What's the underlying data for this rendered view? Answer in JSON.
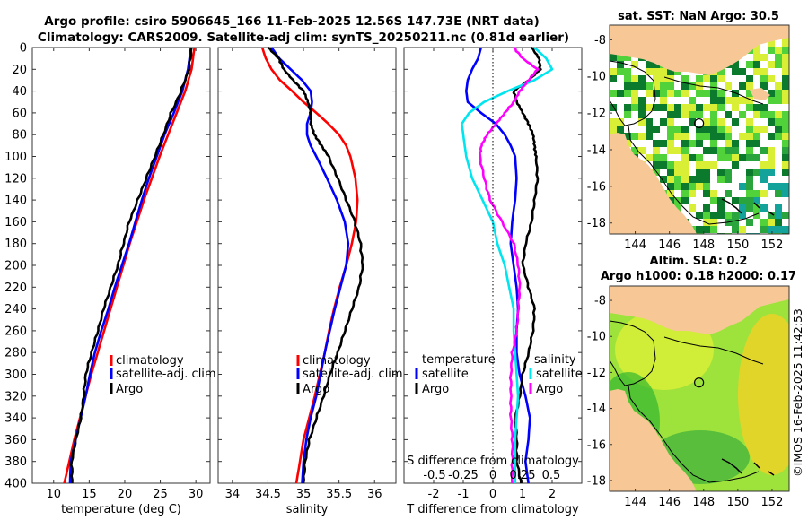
{
  "header": {
    "title_line1": "Argo profile: csiro 5906645_166 11-Feb-2025 12.56S 147.73E (NRT data)",
    "title_line2": "Climatology: CARS2009. Satellite-adj clim: synTS_20250211.nc (0.81d earlier)"
  },
  "colors": {
    "climatology": "#ff0000",
    "satellite": "#0000ff",
    "argo": "#000000",
    "temp_diff": "#00e5ee",
    "sal_diff": "#ff00ff",
    "land": "#f7c896",
    "sst_dark": "#0c7a2c",
    "sst_mid": "#52d23a",
    "sst_light": "#d8ef36"
  },
  "y_axis": {
    "label": "",
    "ticks": [
      0,
      20,
      40,
      60,
      80,
      100,
      120,
      140,
      160,
      180,
      200,
      220,
      240,
      260,
      280,
      300,
      320,
      340,
      360,
      380,
      400
    ]
  },
  "chart_data": [
    {
      "type": "line",
      "name": "temperature-profile",
      "xlabel": "temperature (deg C)",
      "ylabel": "",
      "xlim": [
        7,
        32
      ],
      "ylim": [
        400,
        0
      ],
      "xticks": [
        10,
        15,
        20,
        25,
        30
      ],
      "depth": [
        0,
        20,
        40,
        60,
        80,
        100,
        120,
        140,
        160,
        180,
        200,
        220,
        240,
        260,
        280,
        300,
        320,
        340,
        360,
        380,
        400
      ],
      "series": [
        {
          "name": "climatology",
          "color": "#ff0000",
          "values": [
            29.8,
            29.4,
            28.5,
            27.3,
            26.1,
            24.9,
            23.8,
            22.7,
            21.7,
            20.7,
            19.8,
            18.9,
            18.0,
            17.1,
            16.2,
            15.3,
            14.5,
            13.7,
            12.9,
            12.2,
            11.5
          ]
        },
        {
          "name": "satellite-adj. clim",
          "color": "#0000ff",
          "values": [
            29.3,
            28.9,
            28.1,
            26.9,
            25.6,
            24.5,
            23.4,
            22.4,
            21.5,
            20.6,
            19.6,
            18.6,
            17.7,
            16.7,
            15.8,
            15.1,
            14.5,
            13.8,
            13.1,
            12.4,
            12.3
          ]
        },
        {
          "name": "Argo",
          "color": "#000000",
          "values": [
            29.4,
            29.0,
            27.9,
            26.5,
            25.4,
            24.2,
            23.0,
            21.8,
            20.6,
            19.8,
            19.0,
            18.0,
            17.0,
            16.2,
            15.3,
            14.5,
            14.2,
            13.8,
            13.1,
            12.5,
            12.6
          ]
        }
      ],
      "legend": [
        "climatology",
        "satellite-adj. clim",
        "Argo"
      ],
      "legend_position": "lower-right"
    },
    {
      "type": "line",
      "name": "salinity-profile",
      "xlabel": "salinity",
      "ylabel": "",
      "xlim": [
        33.8,
        36.3
      ],
      "ylim": [
        400,
        0
      ],
      "xticks": [
        34,
        34.5,
        35,
        35.5,
        36
      ],
      "xtick_labels": [
        "34",
        "34.5",
        "35",
        "35.5",
        "36"
      ],
      "depth": [
        0,
        10,
        20,
        30,
        40,
        50,
        60,
        70,
        80,
        90,
        100,
        120,
        140,
        160,
        180,
        200,
        220,
        240,
        260,
        280,
        300,
        320,
        340,
        360,
        380,
        400
      ],
      "series": [
        {
          "name": "climatology",
          "color": "#ff0000",
          "values": [
            34.42,
            34.47,
            34.55,
            34.67,
            34.84,
            35.0,
            35.18,
            35.35,
            35.5,
            35.6,
            35.66,
            35.73,
            35.76,
            35.74,
            35.68,
            35.6,
            35.51,
            35.43,
            35.36,
            35.3,
            35.23,
            35.16,
            35.08,
            35.0,
            34.95,
            34.9
          ]
        },
        {
          "name": "satellite-adj. clim",
          "color": "#0000ff",
          "values": [
            34.55,
            34.66,
            34.82,
            34.98,
            35.1,
            35.12,
            35.1,
            35.05,
            35.05,
            35.1,
            35.18,
            35.33,
            35.47,
            35.58,
            35.63,
            35.6,
            35.52,
            35.44,
            35.37,
            35.3,
            35.24,
            35.18,
            35.1,
            35.04,
            35.0,
            34.98
          ]
        },
        {
          "name": "Argo",
          "color": "#000000",
          "values": [
            34.5,
            34.65,
            34.72,
            34.85,
            35.0,
            35.06,
            35.1,
            35.1,
            35.15,
            35.25,
            35.35,
            35.48,
            35.6,
            35.72,
            35.8,
            35.83,
            35.78,
            35.68,
            35.58,
            35.48,
            35.37,
            35.28,
            35.18,
            35.08,
            35.02,
            35.0
          ]
        }
      ],
      "legend": [
        "climatology",
        "satellite-adj. clim",
        "Argo"
      ],
      "legend_position": "lower-right"
    },
    {
      "type": "line",
      "name": "difference-profile",
      "xlabel": "T difference from climatology",
      "top_label": "S difference from climatology",
      "ylabel": "",
      "xlim": [
        -3,
        3
      ],
      "ylim": [
        400,
        0
      ],
      "xticks": [
        -2,
        -1,
        0,
        1,
        2
      ],
      "xtick_labels": [
        "-2",
        "-1",
        "0",
        "1",
        "2"
      ],
      "s_tick_labels": [
        "-0.5",
        "-0.25",
        "0",
        "0.25",
        "0.5"
      ],
      "depth": [
        0,
        10,
        20,
        30,
        40,
        50,
        60,
        70,
        80,
        90,
        100,
        120,
        140,
        160,
        180,
        200,
        220,
        240,
        260,
        280,
        300,
        320,
        340,
        360,
        380,
        400
      ],
      "series": [
        {
          "name": "temperature satellite",
          "color": "#0000ff",
          "values": [
            -0.4,
            -0.5,
            -0.7,
            -0.85,
            -0.9,
            -0.85,
            -0.4,
            0.1,
            0.4,
            0.6,
            0.75,
            0.8,
            0.75,
            0.65,
            0.6,
            0.7,
            0.8,
            0.85,
            0.8,
            0.8,
            0.9,
            1.1,
            1.25,
            1.2,
            1.1,
            1.2
          ]
        },
        {
          "name": "temperature Argo",
          "color": "#000000",
          "values": [
            1.3,
            1.55,
            1.6,
            1.2,
            0.7,
            0.8,
            1.0,
            1.2,
            1.35,
            1.4,
            1.45,
            1.5,
            1.4,
            1.3,
            1.1,
            1.0,
            1.2,
            1.4,
            1.35,
            1.2,
            1.0,
            0.9,
            0.75,
            0.8,
            0.8,
            0.95
          ]
        },
        {
          "name": "salinity satellite",
          "color": "#00e5ee",
          "values": [
            1.4,
            1.8,
            2.0,
            1.4,
            0.5,
            -0.3,
            -0.8,
            -1.05,
            -1.0,
            -0.95,
            -0.9,
            -0.7,
            -0.35,
            0.0,
            0.15,
            0.4,
            0.55,
            0.7,
            0.7,
            0.75,
            0.8,
            0.85,
            0.8,
            0.75,
            0.75,
            0.75
          ]
        },
        {
          "name": "salinity Argo",
          "color": "#ff00ff",
          "values": [
            0.7,
            1.0,
            1.5,
            1.2,
            0.9,
            0.7,
            0.4,
            0.1,
            -0.2,
            -0.4,
            -0.45,
            -0.3,
            -0.1,
            0.3,
            0.7,
            0.85,
            0.9,
            0.85,
            0.8,
            0.65,
            0.6,
            0.6,
            0.6,
            0.65,
            0.65,
            0.65
          ]
        }
      ],
      "legend_left_title": "temperature",
      "legend_right_title": "salinity",
      "legend": [
        "satellite",
        "Argo"
      ],
      "legend_position": "lower-center"
    }
  ],
  "maps": {
    "sst": {
      "title": "sat. SST: NaN Argo: 30.5",
      "xticks": [
        "144",
        "146",
        "148",
        "150",
        "152"
      ],
      "yticks": [
        "-8",
        "-10",
        "-12",
        "-14",
        "-16",
        "-18"
      ]
    },
    "sla": {
      "title_line1": "Altim. SLA: 0.2",
      "title_line2": "Argo h1000: 0.18 h2000: 0.17",
      "xticks": [
        "144",
        "146",
        "148",
        "150",
        "152"
      ],
      "yticks": [
        "-8",
        "-10",
        "-12",
        "-14",
        "-16",
        "-18"
      ]
    },
    "profile_location": {
      "lon": 147.73,
      "lat": -12.56
    }
  },
  "footer": {
    "stamp": "©IMOS 16-Feb-2025 11:42:53"
  }
}
